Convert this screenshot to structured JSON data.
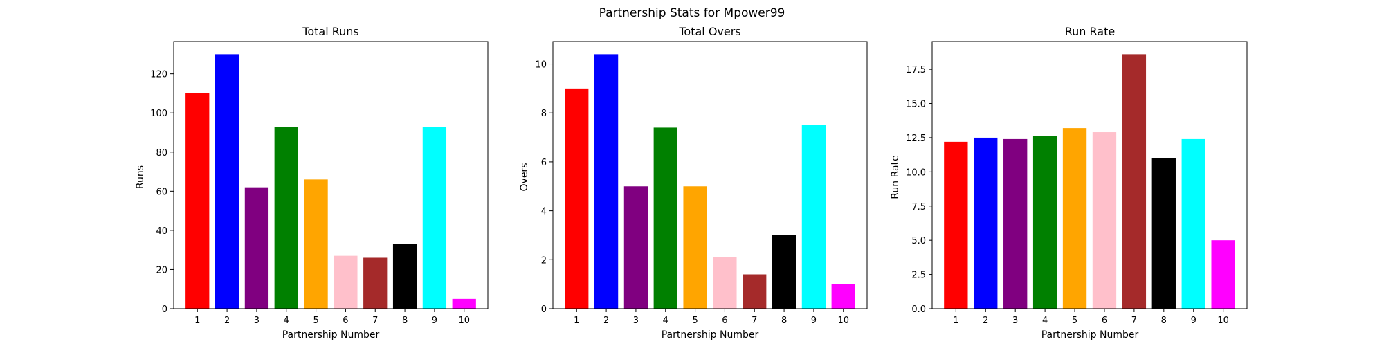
{
  "figure": {
    "suptitle": "Partnership Stats for Mpower99"
  },
  "colors": [
    "#ff0000",
    "#0000ff",
    "#800080",
    "#008000",
    "#ffa500",
    "#ffc0cb",
    "#a52a2a",
    "#000000",
    "#00ffff",
    "#ff00ff"
  ],
  "chart_data": [
    {
      "type": "bar",
      "title": "Total Runs",
      "xlabel": "Partnership Number",
      "ylabel": "Runs",
      "categories": [
        "1",
        "2",
        "3",
        "4",
        "5",
        "6",
        "7",
        "8",
        "9",
        "10"
      ],
      "values": [
        110,
        130,
        62,
        93,
        66,
        27,
        26,
        33,
        93,
        5
      ],
      "ylim": [
        0,
        136.5
      ],
      "yticks": [
        0,
        20,
        40,
        60,
        80,
        100,
        120
      ],
      "ytick_labels": [
        "0",
        "20",
        "40",
        "60",
        "80",
        "100",
        "120"
      ],
      "grid": false
    },
    {
      "type": "bar",
      "title": "Total Overs",
      "xlabel": "Partnership Number",
      "ylabel": "Overs",
      "categories": [
        "1",
        "2",
        "3",
        "4",
        "5",
        "6",
        "7",
        "8",
        "9",
        "10"
      ],
      "values": [
        9.0,
        10.4,
        5.0,
        7.4,
        5.0,
        2.1,
        1.4,
        3.0,
        7.5,
        1.0
      ],
      "ylim": [
        0,
        10.92
      ],
      "yticks": [
        0,
        2,
        4,
        6,
        8,
        10
      ],
      "ytick_labels": [
        "0",
        "2",
        "4",
        "6",
        "8",
        "10"
      ],
      "grid": false
    },
    {
      "type": "bar",
      "title": "Run Rate",
      "xlabel": "Partnership Number",
      "ylabel": "Run Rate",
      "categories": [
        "1",
        "2",
        "3",
        "4",
        "5",
        "6",
        "7",
        "8",
        "9",
        "10"
      ],
      "values": [
        12.2,
        12.5,
        12.4,
        12.6,
        13.2,
        12.9,
        18.6,
        11.0,
        12.4,
        5.0
      ],
      "ylim": [
        0,
        19.53
      ],
      "yticks": [
        0,
        2.5,
        5,
        7.5,
        10,
        12.5,
        15,
        17.5
      ],
      "ytick_labels": [
        "0.0",
        "2.5",
        "5.0",
        "7.5",
        "10.0",
        "12.5",
        "15.0",
        "17.5"
      ],
      "grid": false
    }
  ]
}
